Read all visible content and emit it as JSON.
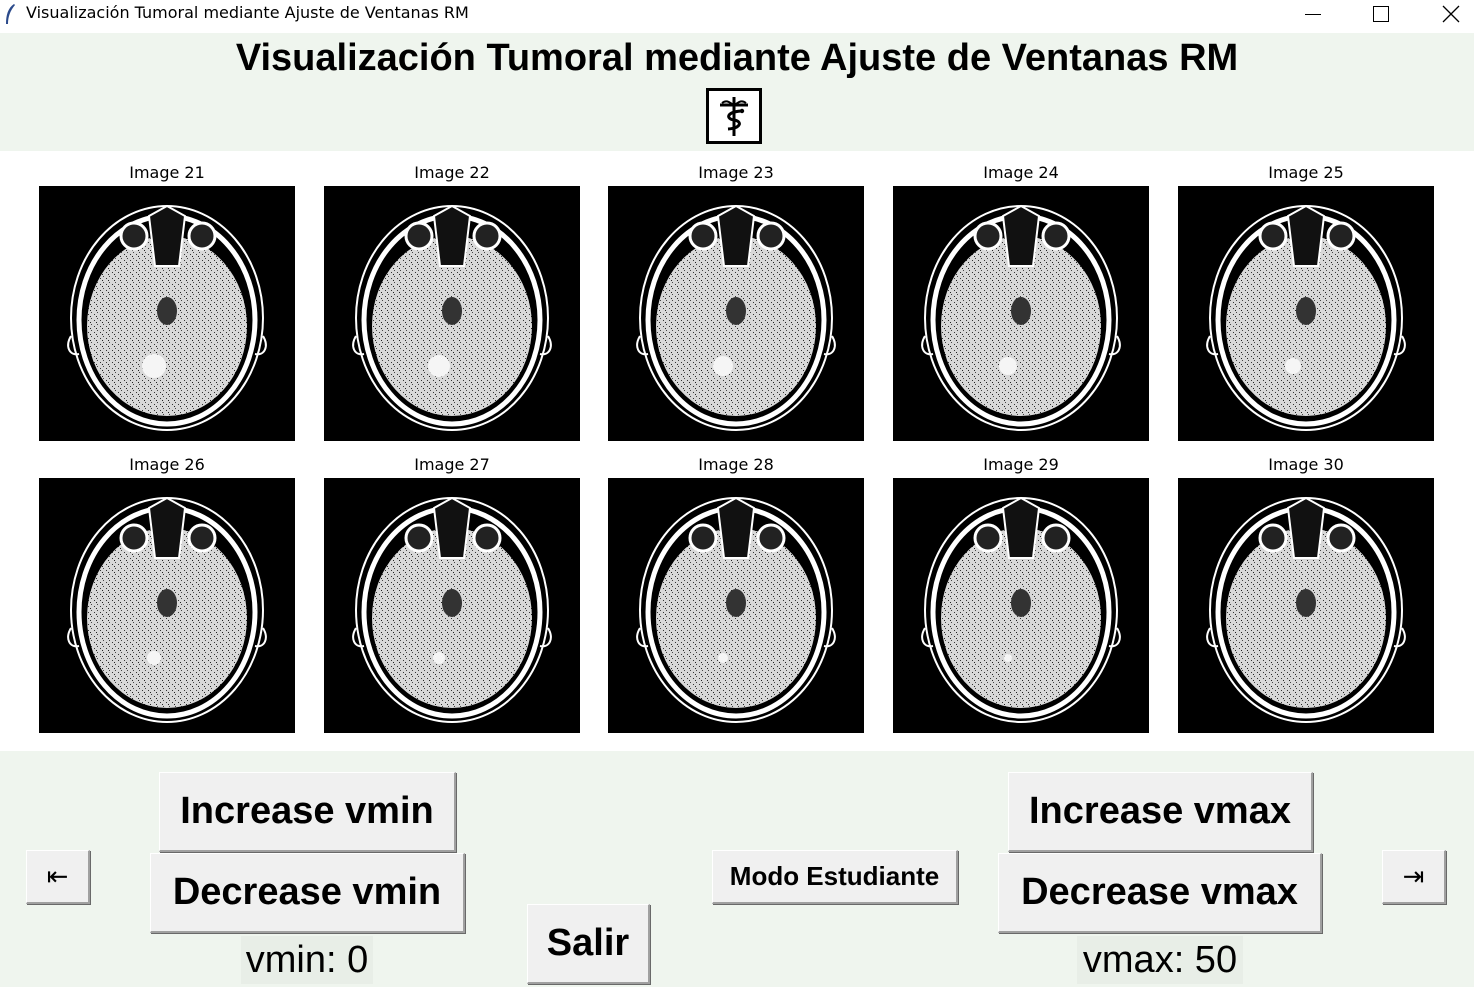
{
  "window": {
    "title": "Visualización Tumoral mediante Ajuste de Ventanas RM",
    "minimize_glyph": "—",
    "maximize_glyph": "☐",
    "close_glyph": "✕"
  },
  "header": {
    "title": "Visualización Tumoral mediante Ajuste de Ventanas RM",
    "logo_icon": "caduceus-icon"
  },
  "gallery": {
    "images": [
      {
        "caption": "Image 21"
      },
      {
        "caption": "Image 22"
      },
      {
        "caption": "Image 23"
      },
      {
        "caption": "Image 24"
      },
      {
        "caption": "Image 25"
      },
      {
        "caption": "Image 26"
      },
      {
        "caption": "Image 27"
      },
      {
        "caption": "Image 28"
      },
      {
        "caption": "Image 29"
      },
      {
        "caption": "Image 30"
      }
    ]
  },
  "controls": {
    "increase_vmin": "Increase vmin",
    "decrease_vmin": "Decrease vmin",
    "vmin_label": "vmin: 0",
    "salir": "Salir",
    "modo_estudiante": "Modo Estudiante",
    "increase_vmax": "Increase vmax",
    "decrease_vmax": "Decrease vmax",
    "vmax_label": "vmax: 50",
    "prev_arrow": "⇤",
    "next_arrow": "⇥"
  },
  "colors": {
    "panel_bg": "#eff5ee",
    "button_bg": "#f0f0f0",
    "scan_bg": "#000000"
  }
}
